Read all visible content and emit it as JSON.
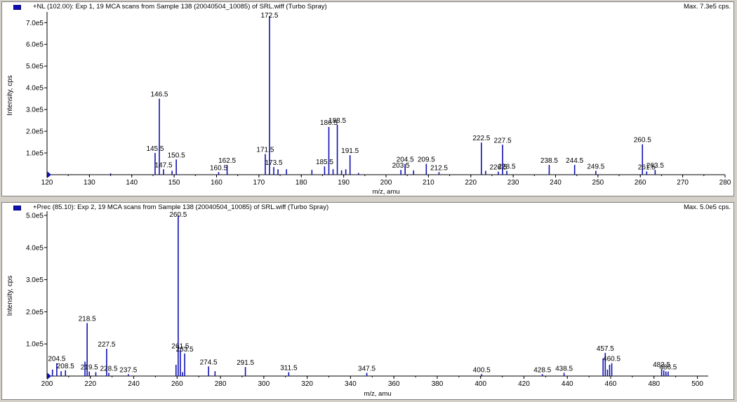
{
  "panels": [
    {
      "title": "+NL (102.00): Exp 1, 19 MCA scans from Sample 138 (20040504_10085) of SRL.wiff (Turbo Spray)",
      "max_label": "Max. 7.3e5 cps.",
      "accent": "#1010b0"
    },
    {
      "title": "+Prec (85.10): Exp 2, 19 MCA scans from Sample 138 (20040504_10085) of SRL.wiff (Turbo Spray)",
      "max_label": "Max. 5.0e5 cps.",
      "accent": "#1010b0"
    }
  ],
  "chart_data": [
    {
      "type": "bar",
      "xlabel": "m/z, amu",
      "ylabel": "Intensity, cps",
      "xlim": [
        120,
        280
      ],
      "ylim": [
        0,
        730000
      ],
      "x_ticks": [
        120,
        130,
        140,
        150,
        160,
        170,
        180,
        190,
        200,
        210,
        220,
        230,
        240,
        250,
        260,
        270,
        280
      ],
      "y_ticks": [
        {
          "value": 100000,
          "label": "1.0e5"
        },
        {
          "value": 200000,
          "label": "2.0e5"
        },
        {
          "value": 300000,
          "label": "3.0e5"
        },
        {
          "value": 400000,
          "label": "4.0e5"
        },
        {
          "value": 500000,
          "label": "5.0e5"
        },
        {
          "value": 600000,
          "label": "6.0e5"
        },
        {
          "value": 700000,
          "label": "7.0e5"
        }
      ],
      "peaks": [
        {
          "x": 135.0,
          "y": 6000
        },
        {
          "x": 145.5,
          "y": 100000,
          "label": "145.5"
        },
        {
          "x": 146.5,
          "y": 350000,
          "label": "146.5"
        },
        {
          "x": 147.5,
          "y": 25000,
          "label": "147.5"
        },
        {
          "x": 149.5,
          "y": 18000
        },
        {
          "x": 150.5,
          "y": 70000,
          "label": "150.5"
        },
        {
          "x": 160.5,
          "y": 12000,
          "label": "160.5"
        },
        {
          "x": 162.5,
          "y": 45000,
          "label": "162.5"
        },
        {
          "x": 171.5,
          "y": 95000,
          "label": "171.5"
        },
        {
          "x": 172.5,
          "y": 730000,
          "label": "172.5"
        },
        {
          "x": 173.5,
          "y": 35000,
          "label": "173.5"
        },
        {
          "x": 174.5,
          "y": 25000
        },
        {
          "x": 176.5,
          "y": 25000
        },
        {
          "x": 182.5,
          "y": 22000
        },
        {
          "x": 185.5,
          "y": 38000,
          "label": "185.5"
        },
        {
          "x": 186.5,
          "y": 220000,
          "label": "186.5"
        },
        {
          "x": 187.5,
          "y": 25000
        },
        {
          "x": 188.5,
          "y": 230000,
          "label": "188.5"
        },
        {
          "x": 189.5,
          "y": 20000
        },
        {
          "x": 190.5,
          "y": 25000
        },
        {
          "x": 191.5,
          "y": 90000,
          "label": "191.5"
        },
        {
          "x": 193.5,
          "y": 8000
        },
        {
          "x": 203.5,
          "y": 22000,
          "label": "203.5"
        },
        {
          "x": 204.5,
          "y": 50000,
          "label": "204.5"
        },
        {
          "x": 206.5,
          "y": 20000
        },
        {
          "x": 209.5,
          "y": 50000,
          "label": "209.5"
        },
        {
          "x": 212.5,
          "y": 12000,
          "label": "212.5"
        },
        {
          "x": 222.5,
          "y": 148000,
          "label": "222.5"
        },
        {
          "x": 223.5,
          "y": 18000
        },
        {
          "x": 226.5,
          "y": 14000,
          "label": "226.5"
        },
        {
          "x": 227.5,
          "y": 138000,
          "label": "227.5"
        },
        {
          "x": 228.5,
          "y": 18000,
          "label": "228.5"
        },
        {
          "x": 238.5,
          "y": 45000,
          "label": "238.5"
        },
        {
          "x": 244.5,
          "y": 45000,
          "label": "244.5"
        },
        {
          "x": 249.5,
          "y": 18000,
          "label": "249.5"
        },
        {
          "x": 260.5,
          "y": 140000,
          "label": "260.5"
        },
        {
          "x": 261.5,
          "y": 15000,
          "label": "261.5"
        },
        {
          "x": 263.5,
          "y": 22000,
          "label": "263.5"
        }
      ]
    },
    {
      "type": "bar",
      "xlabel": "m/z, amu",
      "ylabel": "Intensity, cps",
      "xlim": [
        200,
        505
      ],
      "ylim": [
        0,
        500000
      ],
      "x_ticks": [
        200,
        220,
        240,
        260,
        280,
        300,
        320,
        340,
        360,
        380,
        400,
        420,
        440,
        460,
        480,
        500
      ],
      "y_ticks": [
        {
          "value": 100000,
          "label": "1.0e5"
        },
        {
          "value": 200000,
          "label": "2.0e5"
        },
        {
          "value": 300000,
          "label": "3.0e5"
        },
        {
          "value": 400000,
          "label": "4.0e5"
        },
        {
          "value": 500000,
          "label": "5.0e5"
        }
      ],
      "peaks": [
        {
          "x": 202.5,
          "y": 20000
        },
        {
          "x": 204.5,
          "y": 40000,
          "label": "204.5"
        },
        {
          "x": 206.5,
          "y": 15000
        },
        {
          "x": 208.5,
          "y": 18000,
          "label": "208.5"
        },
        {
          "x": 217.5,
          "y": 45000
        },
        {
          "x": 218.5,
          "y": 165000,
          "label": "218.5"
        },
        {
          "x": 219.5,
          "y": 14000,
          "label": "219.5"
        },
        {
          "x": 222.5,
          "y": 12000
        },
        {
          "x": 227.5,
          "y": 85000,
          "label": "227.5"
        },
        {
          "x": 228.5,
          "y": 10000,
          "label": "228.5"
        },
        {
          "x": 237.5,
          "y": 6000,
          "label": "237.5"
        },
        {
          "x": 259.5,
          "y": 35000
        },
        {
          "x": 260.5,
          "y": 500000,
          "label": "260.5"
        },
        {
          "x": 261.5,
          "y": 80000,
          "label": "261.5"
        },
        {
          "x": 262.5,
          "y": 12000
        },
        {
          "x": 263.5,
          "y": 70000,
          "label": "263.5"
        },
        {
          "x": 274.5,
          "y": 30000,
          "label": "274.5"
        },
        {
          "x": 277.5,
          "y": 15000
        },
        {
          "x": 291.5,
          "y": 28000,
          "label": "291.5"
        },
        {
          "x": 311.5,
          "y": 12000,
          "label": "311.5"
        },
        {
          "x": 347.5,
          "y": 10000,
          "label": "347.5"
        },
        {
          "x": 400.5,
          "y": 6000,
          "label": "400.5"
        },
        {
          "x": 428.5,
          "y": 6000,
          "label": "428.5"
        },
        {
          "x": 438.5,
          "y": 10000,
          "label": "438.5"
        },
        {
          "x": 456.5,
          "y": 55000
        },
        {
          "x": 457.5,
          "y": 72000,
          "label": "457.5"
        },
        {
          "x": 458.5,
          "y": 20000
        },
        {
          "x": 459.5,
          "y": 35000
        },
        {
          "x": 460.5,
          "y": 40000,
          "label": "460.5"
        },
        {
          "x": 483.5,
          "y": 22000,
          "label": "483.5"
        },
        {
          "x": 484.5,
          "y": 18000
        },
        {
          "x": 485.5,
          "y": 14000
        },
        {
          "x": 486.5,
          "y": 14000,
          "label": "486.5"
        }
      ]
    }
  ]
}
